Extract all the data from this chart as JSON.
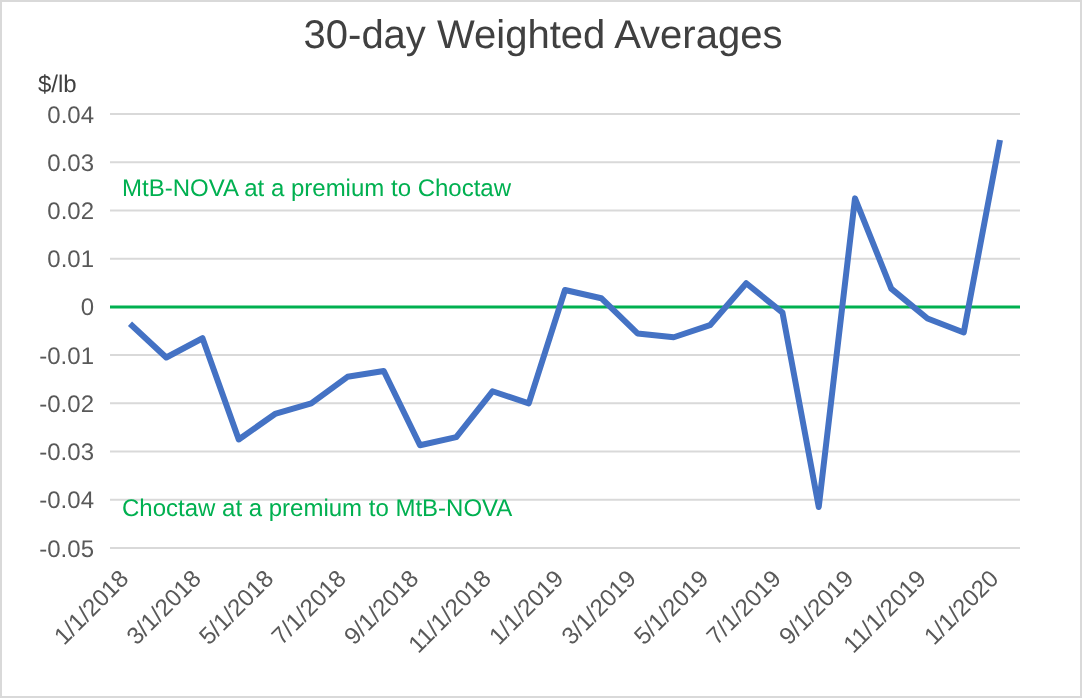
{
  "chart_data": {
    "type": "line",
    "title": "30-day Weighted Averages",
    "ylabel": "$/lb",
    "categories": [
      "1/1/2018",
      null,
      "3/1/2018",
      null,
      "5/1/2018",
      null,
      "7/1/2018",
      null,
      "9/1/2018",
      null,
      "11/1/2018",
      null,
      "1/1/2019",
      null,
      "3/1/2019",
      null,
      "5/1/2019",
      null,
      "7/1/2019",
      null,
      "9/1/2019",
      null,
      "11/1/2019",
      null,
      "1/1/2020"
    ],
    "series": [
      {
        "color": "#4472c4",
        "values": [
          -0.0035,
          -0.0105,
          -0.0065,
          -0.0275,
          -0.0222,
          -0.02,
          -0.0145,
          -0.0133,
          -0.0287,
          -0.027,
          -0.0175,
          -0.02,
          0.0035,
          0.0018,
          -0.0055,
          -0.0063,
          -0.0038,
          0.0049,
          -0.0012,
          -0.0415,
          0.0225,
          0.0038,
          -0.0024,
          -0.0053,
          0.0346
        ]
      }
    ],
    "ylim": [
      -0.05,
      0.04
    ],
    "yticks": [
      -0.05,
      -0.04,
      -0.03,
      -0.02,
      -0.01,
      0,
      0.01,
      0.02,
      0.03,
      0.04
    ],
    "grid": "y",
    "marker": "none",
    "line_style": "solid",
    "ref_lines": [
      {
        "axis": "y",
        "value": 0,
        "color": "#00b050"
      }
    ],
    "annotations": [
      "MtB-NOVA at a premium to Choctaw",
      "Choctaw at a premium to MtB-NOVA"
    ]
  }
}
